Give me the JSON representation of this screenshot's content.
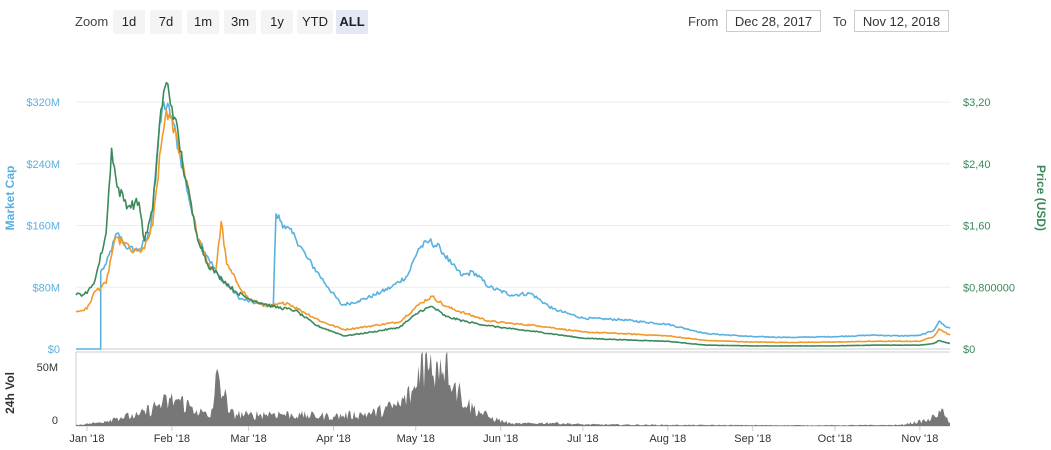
{
  "toolbar": {
    "zoom_label": "Zoom",
    "zoom_buttons": [
      "1d",
      "7d",
      "1m",
      "3m",
      "1y",
      "YTD",
      "ALL"
    ],
    "active_zoom": "ALL",
    "from_label": "From",
    "from_value": "Dec 28, 2017",
    "to_label": "To",
    "to_value": "Nov 12, 2018"
  },
  "chart_data": {
    "type": "line",
    "x_start": "2017-12-28",
    "x_end": "2018-11-12",
    "x_ticks": [
      {
        "date": "2018-01-01",
        "label": "Jan '18"
      },
      {
        "date": "2018-02-01",
        "label": "Feb '18"
      },
      {
        "date": "2018-03-01",
        "label": "Mar '18"
      },
      {
        "date": "2018-04-01",
        "label": "Apr '18"
      },
      {
        "date": "2018-05-01",
        "label": "May '18"
      },
      {
        "date": "2018-06-01",
        "label": "Jun '18"
      },
      {
        "date": "2018-07-01",
        "label": "Jul '18"
      },
      {
        "date": "2018-08-01",
        "label": "Aug '18"
      },
      {
        "date": "2018-09-01",
        "label": "Sep '18"
      },
      {
        "date": "2018-10-01",
        "label": "Oct '18"
      },
      {
        "date": "2018-11-01",
        "label": "Nov '18"
      }
    ],
    "left_axis": {
      "label": "Market Cap",
      "color": "#5ab1e0",
      "range": [
        0,
        320000000
      ],
      "ticks": [
        {
          "value": 0,
          "label": "$0"
        },
        {
          "value": 80000000,
          "label": "$80M"
        },
        {
          "value": 160000000,
          "label": "$160M"
        },
        {
          "value": 240000000,
          "label": "$240M"
        },
        {
          "value": 320000000,
          "label": "$320M"
        }
      ]
    },
    "right_axis": {
      "label": "Price (USD)",
      "color": "#3b8a5a",
      "range": [
        0,
        3.2
      ],
      "ticks": [
        {
          "value": 0,
          "label": "$0"
        },
        {
          "value": 0.8,
          "label": "$0,800000"
        },
        {
          "value": 1.6,
          "label": "$1,60"
        },
        {
          "value": 2.4,
          "label": "$2,40"
        },
        {
          "value": 3.2,
          "label": "$3,20"
        }
      ]
    },
    "volume_axis": {
      "label": "24h Vol",
      "range": [
        0,
        70000000
      ],
      "ticks": [
        {
          "value": 0,
          "label": "0"
        },
        {
          "value": 50000000,
          "label": "50M"
        }
      ]
    },
    "series": [
      {
        "axis": "left",
        "color": "#5ab1e0",
        "points": [
          [
            "2017-12-28",
            0
          ],
          [
            "2018-01-06",
            0
          ],
          [
            "2018-01-06",
            100000000
          ],
          [
            "2018-01-08",
            110000000
          ],
          [
            "2018-01-12",
            150000000
          ],
          [
            "2018-01-16",
            130000000
          ],
          [
            "2018-01-20",
            128000000
          ],
          [
            "2018-01-24",
            150000000
          ],
          [
            "2018-01-27",
            270000000
          ],
          [
            "2018-01-29",
            320000000
          ],
          [
            "2018-02-01",
            300000000
          ],
          [
            "2018-02-04",
            250000000
          ],
          [
            "2018-02-07",
            200000000
          ],
          [
            "2018-02-10",
            150000000
          ],
          [
            "2018-02-14",
            120000000
          ],
          [
            "2018-02-18",
            95000000
          ],
          [
            "2018-02-22",
            80000000
          ],
          [
            "2018-02-26",
            65000000
          ],
          [
            "2018-03-05",
            58000000
          ],
          [
            "2018-03-10",
            55000000
          ],
          [
            "2018-03-11",
            175000000
          ],
          [
            "2018-03-14",
            160000000
          ],
          [
            "2018-03-18",
            145000000
          ],
          [
            "2018-03-22",
            120000000
          ],
          [
            "2018-03-26",
            100000000
          ],
          [
            "2018-03-30",
            80000000
          ],
          [
            "2018-04-04",
            57000000
          ],
          [
            "2018-04-10",
            62000000
          ],
          [
            "2018-04-16",
            70000000
          ],
          [
            "2018-04-22",
            80000000
          ],
          [
            "2018-04-28",
            95000000
          ],
          [
            "2018-05-02",
            130000000
          ],
          [
            "2018-05-06",
            140000000
          ],
          [
            "2018-05-10",
            130000000
          ],
          [
            "2018-05-14",
            110000000
          ],
          [
            "2018-05-18",
            95000000
          ],
          [
            "2018-05-22",
            100000000
          ],
          [
            "2018-05-28",
            80000000
          ],
          [
            "2018-06-05",
            70000000
          ],
          [
            "2018-06-12",
            72000000
          ],
          [
            "2018-06-20",
            52000000
          ],
          [
            "2018-07-01",
            40000000
          ],
          [
            "2018-07-15",
            38000000
          ],
          [
            "2018-08-01",
            32000000
          ],
          [
            "2018-08-15",
            20000000
          ],
          [
            "2018-09-01",
            16000000
          ],
          [
            "2018-09-15",
            15000000
          ],
          [
            "2018-10-01",
            16000000
          ],
          [
            "2018-10-15",
            18000000
          ],
          [
            "2018-10-25",
            17000000
          ],
          [
            "2018-11-01",
            17500000
          ],
          [
            "2018-11-06",
            24000000
          ],
          [
            "2018-11-08",
            36000000
          ],
          [
            "2018-11-10",
            30000000
          ],
          [
            "2018-11-12",
            27000000
          ]
        ]
      },
      {
        "axis": "left",
        "color": "#f09a2d",
        "points": [
          [
            "2017-12-28",
            48000000
          ],
          [
            "2018-01-01",
            52000000
          ],
          [
            "2018-01-04",
            75000000
          ],
          [
            "2018-01-08",
            85000000
          ],
          [
            "2018-01-11",
            140000000
          ],
          [
            "2018-01-14",
            140000000
          ],
          [
            "2018-01-18",
            125000000
          ],
          [
            "2018-01-22",
            130000000
          ],
          [
            "2018-01-25",
            160000000
          ],
          [
            "2018-01-28",
            260000000
          ],
          [
            "2018-01-30",
            310000000
          ],
          [
            "2018-02-03",
            270000000
          ],
          [
            "2018-02-07",
            210000000
          ],
          [
            "2018-02-10",
            150000000
          ],
          [
            "2018-02-14",
            110000000
          ],
          [
            "2018-02-17",
            100000000
          ],
          [
            "2018-02-19",
            165000000
          ],
          [
            "2018-02-21",
            110000000
          ],
          [
            "2018-02-25",
            85000000
          ],
          [
            "2018-03-01",
            65000000
          ],
          [
            "2018-03-08",
            55000000
          ],
          [
            "2018-03-15",
            60000000
          ],
          [
            "2018-03-20",
            50000000
          ],
          [
            "2018-03-28",
            35000000
          ],
          [
            "2018-04-05",
            25000000
          ],
          [
            "2018-04-15",
            30000000
          ],
          [
            "2018-04-25",
            35000000
          ],
          [
            "2018-05-03",
            60000000
          ],
          [
            "2018-05-07",
            68000000
          ],
          [
            "2018-05-12",
            55000000
          ],
          [
            "2018-05-20",
            45000000
          ],
          [
            "2018-05-28",
            36000000
          ],
          [
            "2018-06-05",
            33000000
          ],
          [
            "2018-06-15",
            30000000
          ],
          [
            "2018-07-01",
            22000000
          ],
          [
            "2018-07-15",
            20000000
          ],
          [
            "2018-08-01",
            17000000
          ],
          [
            "2018-08-15",
            11000000
          ],
          [
            "2018-09-01",
            9000000
          ],
          [
            "2018-09-15",
            8500000
          ],
          [
            "2018-10-01",
            9000000
          ],
          [
            "2018-10-15",
            10000000
          ],
          [
            "2018-11-01",
            10000000
          ],
          [
            "2018-11-06",
            16000000
          ],
          [
            "2018-11-08",
            26000000
          ],
          [
            "2018-11-10",
            22000000
          ],
          [
            "2018-11-12",
            18000000
          ]
        ]
      },
      {
        "axis": "right",
        "color": "#3b8a5a",
        "points": [
          [
            "2017-12-28",
            0.7
          ],
          [
            "2018-01-01",
            0.72
          ],
          [
            "2018-01-04",
            0.9
          ],
          [
            "2018-01-08",
            1.5
          ],
          [
            "2018-01-10",
            2.6
          ],
          [
            "2018-01-12",
            2.1
          ],
          [
            "2018-01-16",
            1.85
          ],
          [
            "2018-01-20",
            1.9
          ],
          [
            "2018-01-22",
            1.4
          ],
          [
            "2018-01-25",
            1.8
          ],
          [
            "2018-01-28",
            3.1
          ],
          [
            "2018-01-30",
            3.45
          ],
          [
            "2018-02-02",
            3.0
          ],
          [
            "2018-02-06",
            2.2
          ],
          [
            "2018-02-10",
            1.5
          ],
          [
            "2018-02-14",
            1.1
          ],
          [
            "2018-02-18",
            0.95
          ],
          [
            "2018-02-24",
            0.75
          ],
          [
            "2018-03-01",
            0.65
          ],
          [
            "2018-03-10",
            0.55
          ],
          [
            "2018-03-18",
            0.5
          ],
          [
            "2018-03-26",
            0.3
          ],
          [
            "2018-04-05",
            0.17
          ],
          [
            "2018-04-15",
            0.22
          ],
          [
            "2018-04-25",
            0.28
          ],
          [
            "2018-05-03",
            0.5
          ],
          [
            "2018-05-07",
            0.55
          ],
          [
            "2018-05-12",
            0.42
          ],
          [
            "2018-05-20",
            0.35
          ],
          [
            "2018-05-28",
            0.3
          ],
          [
            "2018-06-05",
            0.26
          ],
          [
            "2018-06-15",
            0.22
          ],
          [
            "2018-07-01",
            0.14
          ],
          [
            "2018-07-15",
            0.12
          ],
          [
            "2018-08-01",
            0.1
          ],
          [
            "2018-08-15",
            0.05
          ],
          [
            "2018-09-01",
            0.04
          ],
          [
            "2018-09-15",
            0.04
          ],
          [
            "2018-10-01",
            0.04
          ],
          [
            "2018-10-15",
            0.05
          ],
          [
            "2018-11-01",
            0.05
          ],
          [
            "2018-11-06",
            0.07
          ],
          [
            "2018-11-08",
            0.11
          ],
          [
            "2018-11-10",
            0.09
          ],
          [
            "2018-11-12",
            0.07
          ]
        ]
      }
    ],
    "volume": {
      "color": "#777777",
      "points": [
        [
          "2017-12-28",
          1000000
        ],
        [
          "2018-01-05",
          3000000
        ],
        [
          "2018-01-12",
          8000000
        ],
        [
          "2018-01-20",
          10000000
        ],
        [
          "2018-01-27",
          20000000
        ],
        [
          "2018-02-03",
          25000000
        ],
        [
          "2018-02-10",
          15000000
        ],
        [
          "2018-02-15",
          8000000
        ],
        [
          "2018-02-18",
          50000000
        ],
        [
          "2018-02-22",
          12000000
        ],
        [
          "2018-03-01",
          10000000
        ],
        [
          "2018-03-10",
          12000000
        ],
        [
          "2018-03-20",
          10000000
        ],
        [
          "2018-04-01",
          9000000
        ],
        [
          "2018-04-15",
          12000000
        ],
        [
          "2018-04-25",
          20000000
        ],
        [
          "2018-05-01",
          35000000
        ],
        [
          "2018-05-03",
          68000000
        ],
        [
          "2018-05-06",
          55000000
        ],
        [
          "2018-05-09",
          60000000
        ],
        [
          "2018-05-12",
          68000000
        ],
        [
          "2018-05-15",
          40000000
        ],
        [
          "2018-05-20",
          20000000
        ],
        [
          "2018-05-28",
          8000000
        ],
        [
          "2018-06-05",
          2000000
        ],
        [
          "2018-06-20",
          3000000
        ],
        [
          "2018-07-01",
          1500000
        ],
        [
          "2018-08-01",
          1000000
        ],
        [
          "2018-09-01",
          800000
        ],
        [
          "2018-10-01",
          700000
        ],
        [
          "2018-10-25",
          1000000
        ],
        [
          "2018-11-05",
          6000000
        ],
        [
          "2018-11-08",
          15000000
        ],
        [
          "2018-11-10",
          10000000
        ],
        [
          "2018-11-12",
          3000000
        ]
      ]
    }
  }
}
